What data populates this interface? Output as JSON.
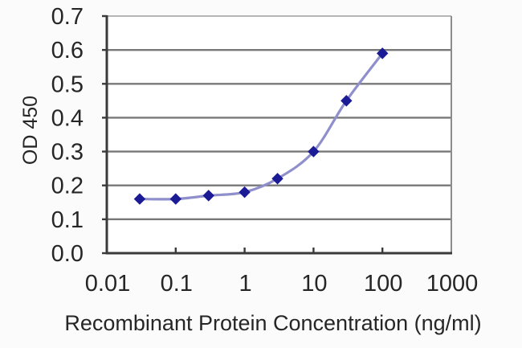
{
  "figure": {
    "background": "#fbfbfb",
    "plot_background": "#ffffff"
  },
  "chart_data": {
    "type": "line",
    "title": "",
    "xlabel": "Recombinant Protein Concentration (ng/ml)",
    "ylabel": "OD 450",
    "x_scale": "log",
    "xlim": [
      0.01,
      1000
    ],
    "ylim": [
      0.0,
      0.7
    ],
    "x_tick_labels": [
      "0.01",
      "0.1",
      "1",
      "10",
      "100",
      "1000"
    ],
    "x_tick_values": [
      0.01,
      0.1,
      1,
      10,
      100,
      1000
    ],
    "y_tick_labels": [
      "0.0",
      "0.1",
      "0.2",
      "0.3",
      "0.4",
      "0.5",
      "0.6",
      "0.7"
    ],
    "y_tick_values": [
      0.0,
      0.1,
      0.2,
      0.3,
      0.4,
      0.5,
      0.6,
      0.7
    ],
    "grid": "horizontal-gridlines-on",
    "legend_position": "none",
    "series": [
      {
        "name": "OD 450 response",
        "marker": "diamond",
        "x": [
          0.03,
          0.1,
          0.3,
          1,
          3,
          10,
          30,
          100
        ],
        "y": [
          0.16,
          0.16,
          0.17,
          0.18,
          0.22,
          0.3,
          0.45,
          0.59
        ]
      }
    ],
    "colors": {
      "marker": "#1b1b96",
      "line": "#8f8fcc",
      "gridline": "#787878",
      "axis": "#3a3a3a",
      "frame_top": "#b5b5b5",
      "frame_right": "#8c8c8c",
      "text": "#262626"
    }
  }
}
